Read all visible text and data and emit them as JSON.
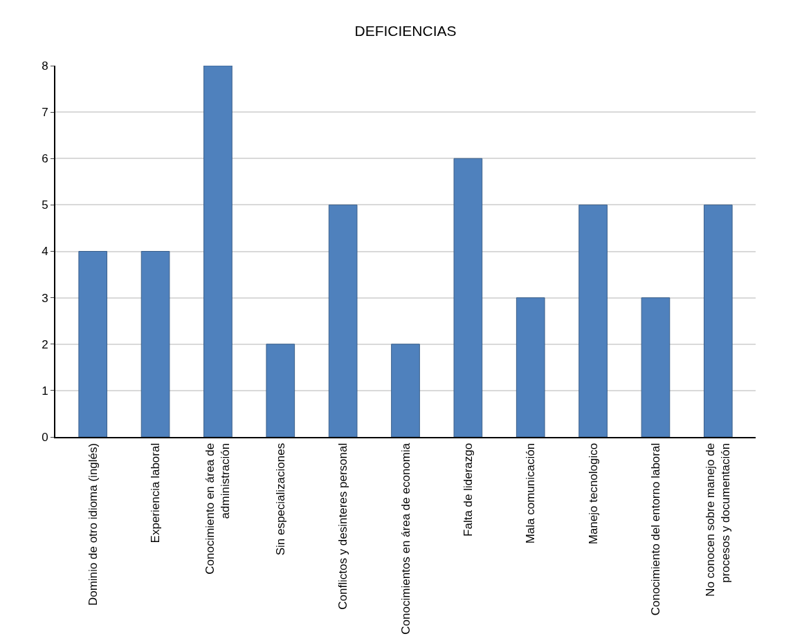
{
  "chart_data": {
    "type": "bar",
    "title": "DEFICIENCIAS",
    "categories": [
      "Dominio de otro idioma (inglés)",
      "Experiencia laboral",
      "Conocimiento en área de administración",
      "Sin especializaciones",
      "Conflictos y desinteres personal",
      "Conocimientos en área de economia",
      "Falta de liderazgo",
      "Mala comunicación",
      "Manejo tecnologico",
      "Conocimiento del entorno laboral",
      "No conocen sobre manejo de procesos y documentación"
    ],
    "values": [
      4,
      4,
      8,
      2,
      5,
      2,
      6,
      3,
      5,
      3,
      5
    ],
    "color": "#4f81bd",
    "ylim": [
      0,
      8
    ],
    "yticks": [
      0,
      1,
      2,
      3,
      4,
      5,
      6,
      7,
      8
    ],
    "grid": "y"
  }
}
